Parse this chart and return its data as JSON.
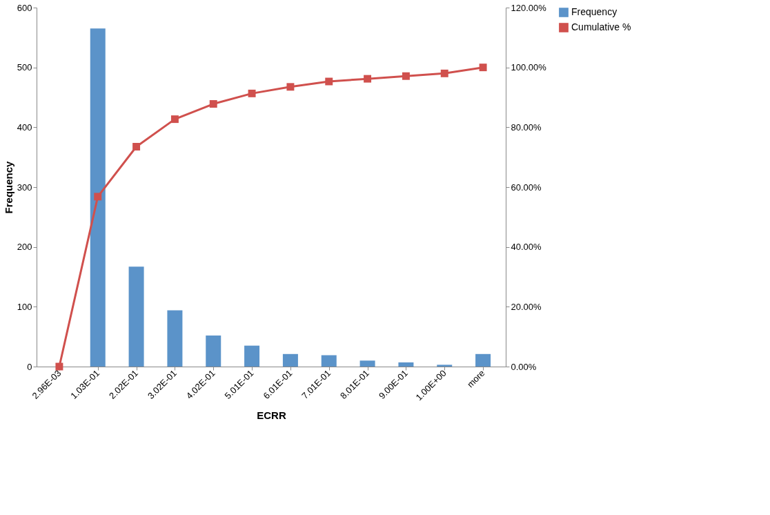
{
  "chart_data": {
    "type": "bar",
    "xlabel": "ECRR",
    "ylabel": "Frequency",
    "categories": [
      "2.96E-03",
      "1.03E-01",
      "2.02E-01",
      "3.02E-01",
      "4.02E-01",
      "5.01E-01",
      "6.01E-01",
      "7.01E-01",
      "8.01E-01",
      "9.00E-01",
      "1.00E+00",
      "more"
    ],
    "series": [
      {
        "name": "Frequency",
        "color": "#5b93c9",
        "values": [
          0,
          565,
          167,
          94,
          52,
          35,
          21,
          19,
          10,
          7,
          3,
          21
        ]
      },
      {
        "name": "Cumulative %",
        "type": "line",
        "axis": "y2",
        "color": "#d0504d",
        "marker": "square",
        "values": [
          0,
          56.8,
          73.5,
          82.7,
          87.8,
          91.3,
          93.5,
          95.3,
          96.2,
          97.1,
          98.0,
          100
        ]
      }
    ],
    "ylim": [
      0,
      600
    ],
    "yticks": [
      0,
      100,
      200,
      300,
      400,
      500,
      600
    ],
    "y2lim": [
      0,
      120
    ],
    "y2ticks": [
      {
        "value": 0,
        "label": "0.00%"
      },
      {
        "value": 20,
        "label": "20.00%"
      },
      {
        "value": 40,
        "label": "40.00%"
      },
      {
        "value": 60,
        "label": "60.00%"
      },
      {
        "value": 80,
        "label": "80.00%"
      },
      {
        "value": 100,
        "label": "100.00%"
      },
      {
        "value": 120,
        "label": "120.00%"
      }
    ],
    "grid": false,
    "legend": "right"
  }
}
